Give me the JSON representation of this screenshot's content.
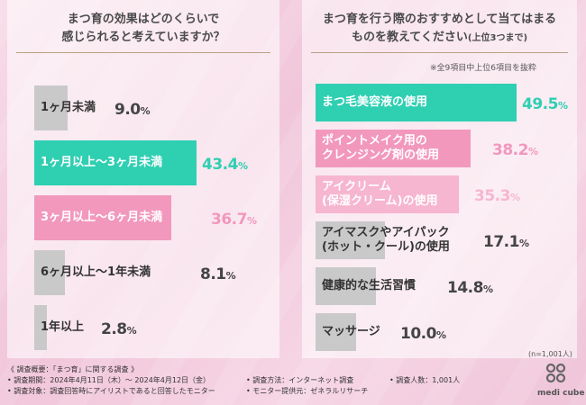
{
  "left_chart": {
    "title_line1": "まつ育の効果はどのくらいで",
    "title_line2": "感じられると考えていますか？",
    "chart_data": {
      "type": "bar",
      "orientation": "horizontal",
      "categories": [
        "1ヶ月未満",
        "1ヶ月以上〜3ヶ月未満",
        "3ヶ月以上〜6ヶ月未満",
        "6ヶ月以上〜1年未満",
        "1年以上"
      ],
      "values": [
        9.0,
        43.4,
        36.7,
        8.1,
        2.8
      ],
      "value_labels": [
        "9.0%",
        "43.4%",
        "36.7%",
        "8.1%",
        "2.8%"
      ],
      "unit": "%",
      "colors": [
        "#c9c9c9",
        "#2fcfb2",
        "#f298bd",
        "#c9c9c9",
        "#c9c9c9"
      ],
      "percent_colors": [
        "#444444",
        "#2fcfb2",
        "#f298bd",
        "#444444",
        "#444444"
      ],
      "label_light": [
        false,
        true,
        true,
        false,
        false
      ]
    }
  },
  "right_chart": {
    "title_line1": "まつ育を行う際のおすすめとして当てはまる",
    "title_line2": "ものを教えてください",
    "title_suffix": "(上位3つまで)",
    "note": "※全9項目中上位6項目を抜粋",
    "n_label": "(n=1,001人)",
    "chart_data": {
      "type": "bar",
      "orientation": "horizontal",
      "categories": [
        [
          "まつ毛美容液の使用"
        ],
        [
          "ポイントメイク用の",
          "クレンジング剤の使用"
        ],
        [
          "アイクリーム",
          "(保湿クリーム)の使用"
        ],
        [
          "アイマスクやアイパック",
          "(ホット・クール)の使用"
        ],
        [
          "健康的な生活習慣"
        ],
        [
          "マッサージ"
        ]
      ],
      "values": [
        49.5,
        38.2,
        35.3,
        17.1,
        14.8,
        10.0
      ],
      "value_labels": [
        "49.5%",
        "38.2%",
        "35.3%",
        "17.1%",
        "14.8%",
        "10.0%"
      ],
      "unit": "%",
      "colors": [
        "#2fcfb2",
        "#f298bd",
        "#f6b6cf",
        "#c9c9c9",
        "#c9c9c9",
        "#c9c9c9"
      ],
      "percent_colors": [
        "#2fcfb2",
        "#f298bd",
        "#f6b6cf",
        "#444444",
        "#444444",
        "#444444"
      ],
      "label_light": [
        true,
        true,
        true,
        false,
        false,
        false
      ]
    }
  },
  "footer": {
    "heading": "《 調査概要：「まつ育」に関する調査 》",
    "period": "• 調査期間：2024年4月11日（木）〜 2024年4月12日（金）",
    "target": "• 調査対象：調査回答時にアイリストであると回答したモニター",
    "method": "• 調査方法：インターネット調査",
    "provider": "• モニター提供元：ゼネラルリサーチ",
    "count": "• 調査人数：1,001人"
  },
  "logo": {
    "text": "medi cube",
    "icon": "medicube-logo-icon",
    "color": "#555555"
  },
  "colors": {
    "accent_teal": "#2fcfb2",
    "accent_pink": "#f298bd",
    "accent_light_pink": "#f6b6cf",
    "neutral_gray": "#c9c9c9",
    "title_divider": "#b9a087"
  }
}
